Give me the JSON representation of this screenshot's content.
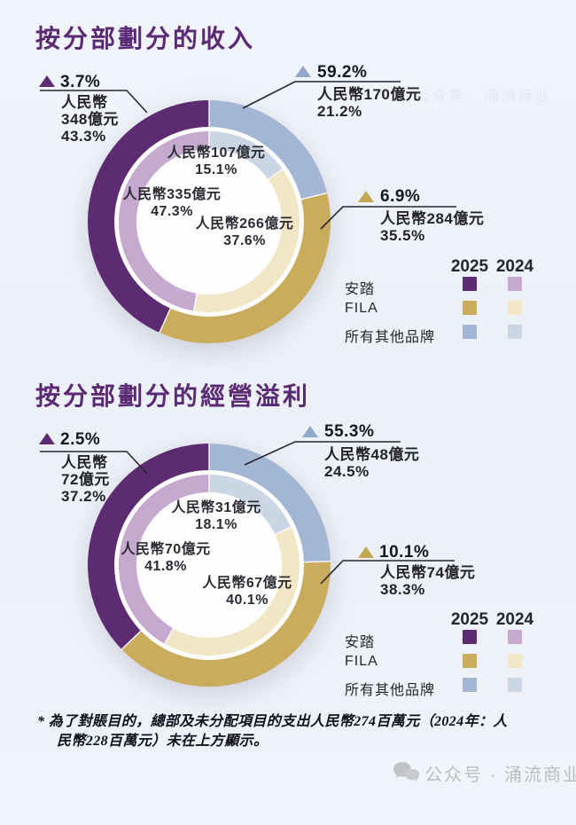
{
  "colors": {
    "title": "#5b2a74",
    "background": "#eef1f8",
    "connector": "#26262e",
    "y2025": {
      "anta": "#5c2b72",
      "fila": "#c9ac5c",
      "others": "#a3b6d4"
    },
    "y2024": {
      "anta": "#c6a9ce",
      "fila": "#f1e7c6",
      "others": "#cbd6e5"
    },
    "triangle": {
      "anta": "#5c2b72",
      "fila": "#c2a854",
      "others": "#90a8c9"
    }
  },
  "legend": {
    "col_2025": "2025",
    "col_2024": "2024",
    "rows": [
      {
        "label": "安踏",
        "key": "anta"
      },
      {
        "label": "FILA",
        "key": "fila"
      },
      {
        "label": "所有其他品牌",
        "key": "others"
      }
    ]
  },
  "charts": [
    {
      "title": "按分部劃分的收入",
      "callouts": [
        {
          "key": "anta",
          "pct": "3.7%",
          "line1": "人民幣",
          "line2": "348億元",
          "line3": "43.3%"
        },
        {
          "key": "others",
          "pct": "59.2%",
          "line1": "人民幣170億元",
          "line2": "21.2%"
        },
        {
          "key": "fila",
          "pct": "6.9%",
          "line1": "人民幣284億元",
          "line2": "35.5%"
        }
      ],
      "inner": [
        {
          "line1": "人民幣107億元",
          "line2": "15.1%"
        },
        {
          "line1": "人民幣335億元",
          "line2": "47.3%"
        },
        {
          "line1": "人民幣266億元",
          "line2": "37.6%"
        }
      ]
    },
    {
      "title": "按分部劃分的經營溢利",
      "callouts": [
        {
          "key": "anta",
          "pct": "2.5%",
          "line1": "人民幣",
          "line2": "72億元",
          "line3": "37.2%"
        },
        {
          "key": "others",
          "pct": "55.3%",
          "line1": "人民幣48億元",
          "line2": "24.5%"
        },
        {
          "key": "fila",
          "pct": "10.1%",
          "line1": "人民幣74億元",
          "line2": "38.3%"
        }
      ],
      "inner": [
        {
          "line1": "人民幣31億元",
          "line2": "18.1%"
        },
        {
          "line1": "人民幣70億元",
          "line2": "41.8%"
        },
        {
          "line1": "人民幣67億元",
          "line2": "40.1%"
        }
      ]
    }
  ],
  "chart_data": [
    {
      "type": "donut",
      "title": "按分部劃分的收入",
      "unit": "人民幣億元",
      "rings": {
        "outer": "2025",
        "inner": "2024"
      },
      "clockwise_from_top_order": [
        "所有其他品牌",
        "FILA",
        "安踏"
      ],
      "categories": [
        "安踏",
        "FILA",
        "所有其他品牌"
      ],
      "series": [
        {
          "name": "2025",
          "values_rmb_billion": [
            348,
            284,
            170
          ],
          "share_pct": [
            43.3,
            35.5,
            21.2
          ],
          "yoy_change_pct": [
            3.7,
            6.9,
            59.2
          ]
        },
        {
          "name": "2024",
          "values_rmb_billion": [
            335,
            266,
            107
          ],
          "share_pct": [
            47.3,
            37.6,
            15.1
          ]
        }
      ]
    },
    {
      "type": "donut",
      "title": "按分部劃分的經營溢利",
      "unit": "人民幣億元",
      "rings": {
        "outer": "2025",
        "inner": "2024"
      },
      "clockwise_from_top_order": [
        "所有其他品牌",
        "FILA",
        "安踏"
      ],
      "categories": [
        "安踏",
        "FILA",
        "所有其他品牌"
      ],
      "series": [
        {
          "name": "2025",
          "values_rmb_billion": [
            72,
            74,
            48
          ],
          "share_pct": [
            37.2,
            38.3,
            24.5
          ],
          "yoy_change_pct": [
            2.5,
            10.1,
            55.3
          ]
        },
        {
          "name": "2024",
          "values_rmb_billion": [
            70,
            67,
            31
          ],
          "share_pct": [
            41.8,
            40.1,
            18.1
          ]
        }
      ]
    }
  ],
  "footnote": {
    "line1": "* 為了對賬目的，總部及未分配項目的支出人民幣274百萬元（2024年：人",
    "line2": "民幣228百萬元）未在上方顯示。"
  },
  "watermark": {
    "text": "公众号 · 涌流商业"
  }
}
